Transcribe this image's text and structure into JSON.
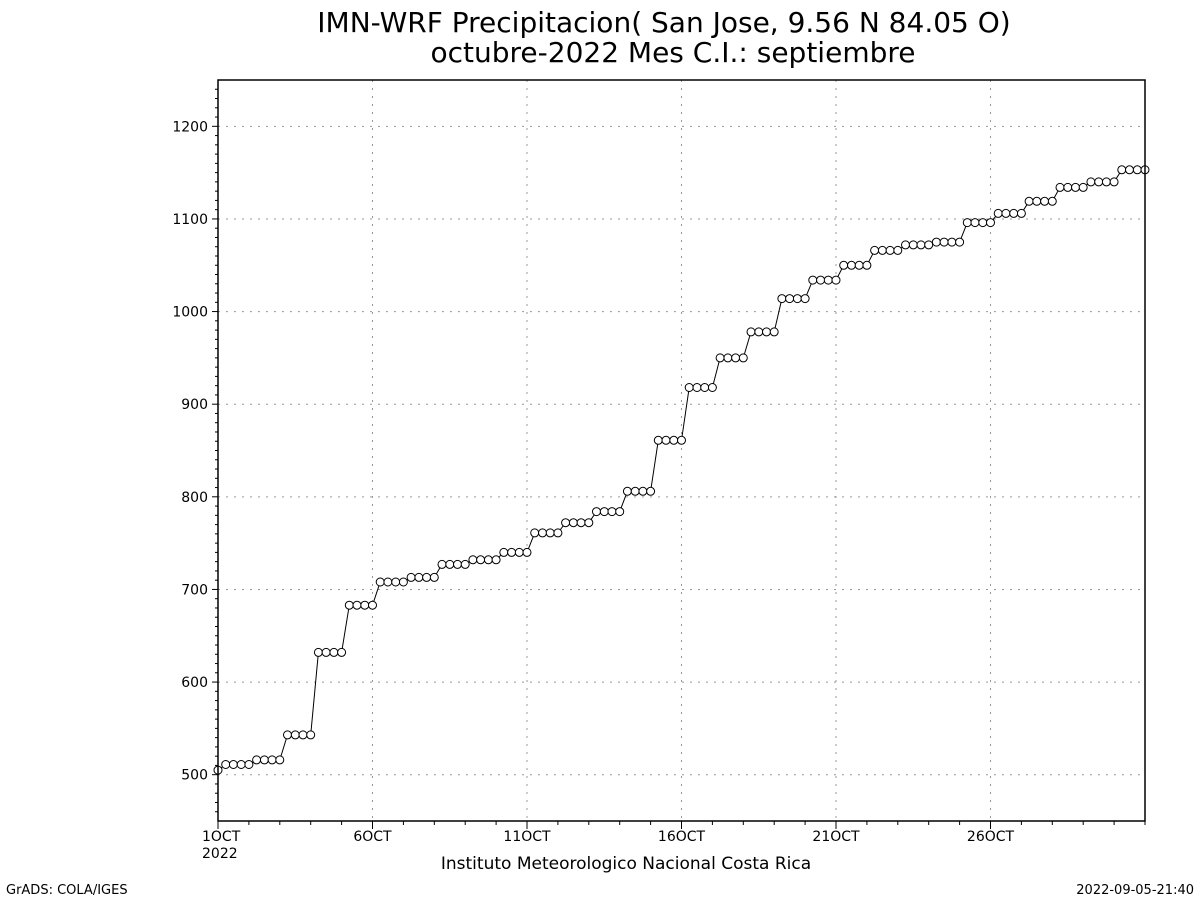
{
  "chart_data": {
    "type": "line",
    "title": "IMN-WRF  Precipitacion( San Jose, 9.56  N 84.05  O)",
    "subtitle": "octubre-2022 Mes C.I.: septiembre",
    "xlabel": "Instituto Meteorologico Nacional Costa Rica",
    "ylabel": "",
    "xlim": [
      1,
      31
    ],
    "ylim": [
      450,
      1250
    ],
    "yticks": [
      "500",
      "600",
      "700",
      "800",
      "900",
      "1000",
      "1100",
      "1200"
    ],
    "xticks": [
      {
        "x": 1,
        "label": "1OCT",
        "sublabel": "2022"
      },
      {
        "x": 6,
        "label": "6OCT"
      },
      {
        "x": 11,
        "label": "11OCT"
      },
      {
        "x": 16,
        "label": "16OCT"
      },
      {
        "x": 21,
        "label": "21OCT"
      },
      {
        "x": 26,
        "label": "26OCT"
      }
    ],
    "grid": true,
    "marker": "open-circle",
    "series": [
      {
        "daily_values": [
          [
            505,
            511,
            511,
            511
          ],
          [
            511,
            516,
            516,
            516
          ],
          [
            516,
            543,
            543,
            543
          ],
          [
            543,
            632,
            632,
            632
          ],
          [
            632,
            683,
            683,
            683
          ],
          [
            683,
            708,
            708,
            708
          ],
          [
            708,
            713,
            713,
            713
          ],
          [
            713,
            727,
            727,
            727
          ],
          [
            727,
            732,
            732,
            732
          ],
          [
            732,
            740,
            740,
            740
          ],
          [
            740,
            761,
            761,
            761
          ],
          [
            761,
            772,
            772,
            772
          ],
          [
            772,
            784,
            784,
            784
          ],
          [
            784,
            806,
            806,
            806
          ],
          [
            806,
            861,
            861,
            861
          ],
          [
            861,
            918,
            918,
            918
          ],
          [
            918,
            950,
            950,
            950
          ],
          [
            950,
            978,
            978,
            978
          ],
          [
            978,
            1014,
            1014,
            1014
          ],
          [
            1014,
            1034,
            1034,
            1034
          ],
          [
            1034,
            1050,
            1050,
            1050
          ],
          [
            1050,
            1066,
            1066,
            1066
          ],
          [
            1066,
            1072,
            1072,
            1072
          ],
          [
            1072,
            1075,
            1075,
            1075
          ],
          [
            1075,
            1096,
            1096,
            1096
          ],
          [
            1096,
            1106,
            1106,
            1106
          ],
          [
            1106,
            1119,
            1119,
            1119
          ],
          [
            1119,
            1134,
            1134,
            1134
          ],
          [
            1134,
            1140,
            1140,
            1140
          ],
          [
            1140,
            1153,
            1153,
            1153,
            1153
          ]
        ]
      }
    ]
  },
  "footer": {
    "left": "GrADS: COLA/IGES",
    "right": "2022-09-05-21:40"
  }
}
